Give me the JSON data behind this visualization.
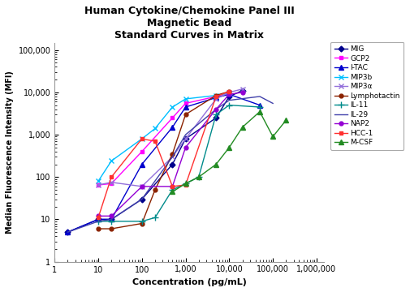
{
  "title": "Human Cytokine/Chemokine Panel III\nMagnetic Bead\nStandard Curves in Matrix",
  "xlabel": "Concentration (pg/mL)",
  "ylabel": "Median Fluorescence Intensity (MFI)",
  "xlim": [
    1.5,
    1500000
  ],
  "ylim": [
    1,
    150000
  ],
  "series": [
    {
      "name": "MIG",
      "color": "#00008B",
      "marker": "D",
      "markersize": 3.5,
      "x": [
        2,
        10,
        20,
        100,
        500,
        1000,
        5000,
        10000,
        20000
      ],
      "y": [
        5,
        10,
        10,
        30,
        200,
        800,
        2500,
        8000,
        11000
      ]
    },
    {
      "name": "GCP2",
      "color": "#FF00FF",
      "marker": "s",
      "markersize": 3.5,
      "x": [
        10,
        20,
        100,
        500,
        1000,
        5000,
        10000
      ],
      "y": [
        65,
        70,
        400,
        2500,
        5500,
        8000,
        9000
      ]
    },
    {
      "name": "I-TAC",
      "color": "#0000CD",
      "marker": "^",
      "markersize": 4,
      "x": [
        2,
        10,
        20,
        100,
        500,
        1000,
        5000,
        10000,
        50000
      ],
      "y": [
        5,
        10,
        10,
        200,
        1500,
        4500,
        7500,
        9000,
        5000
      ]
    },
    {
      "name": "MIP3b",
      "color": "#00BFFF",
      "marker": "x",
      "markersize": 5,
      "x": [
        10,
        20,
        100,
        200,
        500,
        1000,
        5000,
        10000
      ],
      "y": [
        80,
        240,
        800,
        1400,
        4500,
        7000,
        8500,
        9500
      ]
    },
    {
      "name": "MIP3α",
      "color": "#9370DB",
      "marker": "x",
      "markersize": 5,
      "x": [
        10,
        20,
        100,
        500,
        1000,
        5000,
        10000,
        20000
      ],
      "y": [
        65,
        75,
        60,
        300,
        800,
        7000,
        10000,
        12000
      ]
    },
    {
      "name": "Lymphotactin",
      "color": "#8B2200",
      "marker": "o",
      "markersize": 3.5,
      "x": [
        10,
        20,
        100,
        200,
        500,
        1000,
        5000,
        10000
      ],
      "y": [
        6,
        6,
        8,
        50,
        350,
        3000,
        8500,
        10500
      ]
    },
    {
      "name": "IL-11",
      "color": "#008B8B",
      "marker": "+",
      "markersize": 6,
      "x": [
        10,
        20,
        100,
        200,
        500,
        1000,
        2000,
        5000,
        10000,
        50000
      ],
      "y": [
        9,
        9,
        9,
        11,
        50,
        70,
        100,
        3000,
        5000,
        4500
      ]
    },
    {
      "name": "IL-29",
      "color": "#4040AA",
      "marker": "none",
      "markersize": 3.5,
      "x": [
        2,
        10,
        20,
        100,
        500,
        1000,
        5000,
        10000,
        50000,
        100000
      ],
      "y": [
        5,
        9,
        10,
        30,
        300,
        1000,
        4000,
        6500,
        8000,
        5500
      ]
    },
    {
      "name": "NAP2",
      "color": "#9400D3",
      "marker": "o",
      "markersize": 3.5,
      "x": [
        10,
        20,
        100,
        500,
        1000,
        5000,
        10000,
        20000
      ],
      "y": [
        12,
        12,
        60,
        60,
        500,
        4000,
        9000,
        10000
      ]
    },
    {
      "name": "HCC-1",
      "color": "#FF3030",
      "marker": "s",
      "markersize": 3.5,
      "x": [
        10,
        20,
        100,
        200,
        500,
        1000,
        5000,
        10000
      ],
      "y": [
        11,
        100,
        800,
        700,
        60,
        65,
        8000,
        10500
      ]
    },
    {
      "name": "M-CSF",
      "color": "#228B22",
      "marker": "^",
      "markersize": 4,
      "x": [
        500,
        1000,
        2000,
        5000,
        10000,
        20000,
        50000,
        100000,
        200000
      ],
      "y": [
        45,
        70,
        100,
        200,
        500,
        1500,
        3500,
        900,
        2200
      ]
    }
  ]
}
